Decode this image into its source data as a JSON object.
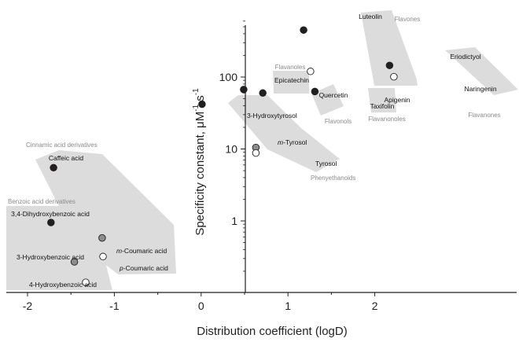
{
  "chart_data": {
    "type": "scatter",
    "title": "",
    "xlabel": "Distribution coefficient (logD)",
    "ylabel": {
      "main": "Specificity constant, μM",
      "exp1": "-1",
      "mid": " s",
      "exp2": "-1"
    },
    "xlim": [
      -2.0,
      2.5
    ],
    "ylim": [
      0.115,
      620
    ],
    "y_scale": "log",
    "grid": false,
    "x_ticks": [
      -2,
      -1,
      0,
      1,
      2
    ],
    "x_tick_labels": [
      "-2",
      "-1",
      "0",
      "1",
      "2"
    ],
    "y_ticks": [
      1,
      10,
      100
    ],
    "y_tick_labels": [
      "1",
      "10",
      "100"
    ],
    "colors": {
      "filled": "#231f20",
      "gray": "#8c8c8c",
      "open": "#ffffff",
      "region": "#dcdcdc"
    },
    "points": [
      {
        "name": "Caffeic acid",
        "x": -1.7,
        "y": 5.5,
        "marker": "filled"
      },
      {
        "name": "3,4-Dihydroxybenzoic acid",
        "x": -1.73,
        "y": 0.95,
        "marker": "filled"
      },
      {
        "name": "3-Hydroxybenzoic acid",
        "x": -1.46,
        "y": 0.27,
        "marker": "gray"
      },
      {
        "name": "4-Hydroxybenzoic acid",
        "x": -1.33,
        "y": 0.14,
        "marker": "open"
      },
      {
        "name": "m-Coumaric acid",
        "x": -1.14,
        "y": 0.58,
        "marker": "gray"
      },
      {
        "name": "p-Coumaric acid",
        "x": -1.13,
        "y": 0.32,
        "marker": "open"
      },
      {
        "name": "3-Hydroxytyrosol",
        "x": 0.01,
        "y": 42,
        "marker": "filled"
      },
      {
        "name": "m-Tyrosol",
        "x": 0.63,
        "y": 10.5,
        "marker": "gray"
      },
      {
        "name": "Tyrosol",
        "x": 0.63,
        "y": 8.8,
        "marker": "open"
      },
      {
        "name": "Epicatechin",
        "x": 0.49,
        "y": 67,
        "marker": "filled"
      },
      {
        "name": "Quercetin",
        "x": 0.71,
        "y": 60,
        "marker": "filled"
      },
      {
        "name": "Luteolin",
        "x": 1.18,
        "y": 450,
        "marker": "filled"
      },
      {
        "name": "Apigenin",
        "x": 1.26,
        "y": 120,
        "marker": "open"
      },
      {
        "name": "Taxifolin",
        "x": 1.31,
        "y": 63,
        "marker": "filled"
      },
      {
        "name": "Eriodictyol",
        "x": 2.17,
        "y": 145,
        "marker": "filled"
      },
      {
        "name": "Naringenin",
        "x": 2.22,
        "y": 101,
        "marker": "open"
      }
    ],
    "groups": [
      "Cinnamic acid derivatives",
      "Benzoic acid derivatives",
      "Phenyethanoids",
      "Flavanoles",
      "Flavonols",
      "Flavones",
      "Flavanonoles",
      "Flavanones"
    ]
  }
}
